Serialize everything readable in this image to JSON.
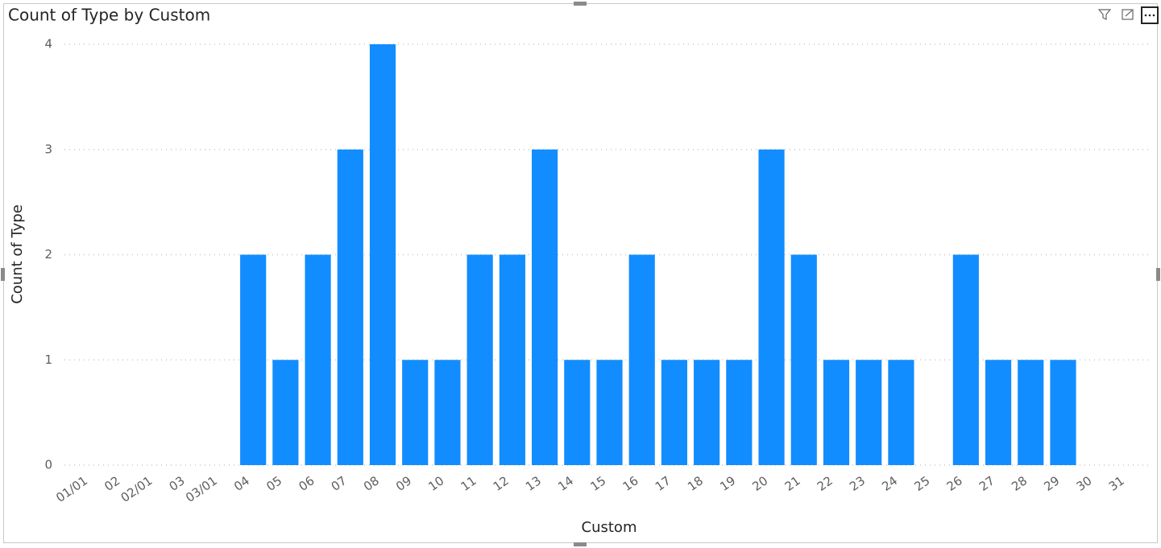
{
  "chart_data": {
    "type": "bar",
    "title": "Count of Type by Custom",
    "x_label": "Custom",
    "y_label": "Count of Type",
    "categories": [
      "01/01",
      "02",
      "02/01",
      "03",
      "03/01",
      "04",
      "05",
      "06",
      "07",
      "08",
      "09",
      "10",
      "11",
      "12",
      "13",
      "14",
      "15",
      "16",
      "17",
      "18",
      "19",
      "20",
      "21",
      "22",
      "23",
      "24",
      "25",
      "26",
      "27",
      "28",
      "29",
      "30",
      "31"
    ],
    "values": [
      null,
      null,
      null,
      null,
      null,
      2,
      1,
      2,
      3,
      4,
      1,
      1,
      2,
      2,
      3,
      1,
      1,
      2,
      1,
      1,
      1,
      3,
      2,
      1,
      1,
      1,
      null,
      2,
      1,
      1,
      1,
      null,
      null
    ],
    "color": "#118DFF",
    "ylim": [
      0,
      4
    ],
    "yticks": [
      0,
      1,
      2,
      3,
      4
    ],
    "grid": true
  }
}
